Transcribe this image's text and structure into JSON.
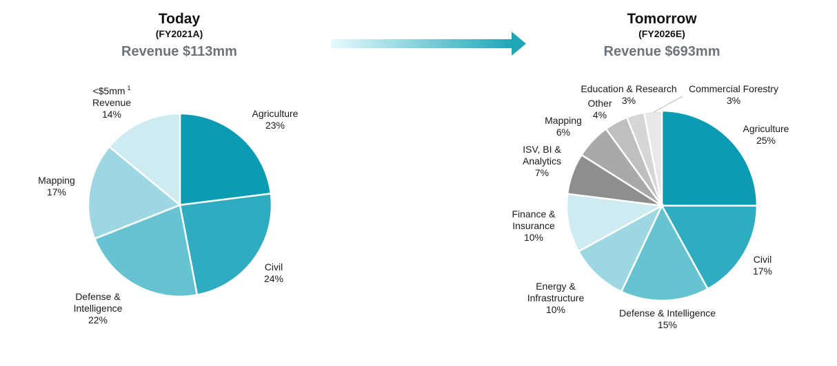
{
  "arrow": {
    "gradient_start": "#e6fafd",
    "gradient_end": "#1ea5b7"
  },
  "chart_data": [
    {
      "type": "pie",
      "title": "Today",
      "subtitle": "(FY2021A)",
      "revenue": "Revenue $113mm",
      "slices": [
        {
          "label": "Agriculture",
          "value_label": "23%",
          "value": 23,
          "color": "#0b9bb2"
        },
        {
          "label": "Civil",
          "value_label": "24%",
          "value": 24,
          "color": "#30acc0"
        },
        {
          "label": "Defense & Intelligence",
          "value_label": "22%",
          "value": 22,
          "color": "#66c3d2"
        },
        {
          "label": "Mapping",
          "value_label": "17%",
          "value": 17,
          "color": "#9dd8e2"
        },
        {
          "label": "<$5mm Revenue",
          "value_label": "14%",
          "value": 14,
          "color": "#cdebf0",
          "footnote": "1"
        }
      ]
    },
    {
      "type": "pie",
      "title": "Tomorrow",
      "subtitle": "(FY2026E)",
      "revenue": "Revenue $693mm",
      "slices": [
        {
          "label": "Agriculture",
          "value_label": "25%",
          "value": 25,
          "color": "#0b9bb2"
        },
        {
          "label": "Civil",
          "value_label": "17%",
          "value": 17,
          "color": "#30acc0"
        },
        {
          "label": "Defense & Intelligence",
          "value_label": "15%",
          "value": 15,
          "color": "#66c3d2"
        },
        {
          "label": "Energy & Infrastructure",
          "value_label": "10%",
          "value": 10,
          "color": "#9dd8e2"
        },
        {
          "label": "Finance & Insurance",
          "value_label": "10%",
          "value": 10,
          "color": "#cdebf0"
        },
        {
          "label": "ISV, BI & Analytics",
          "value_label": "7%",
          "value": 7,
          "color": "#8e8e8e"
        },
        {
          "label": "Mapping",
          "value_label": "6%",
          "value": 6,
          "color": "#a9a9a9"
        },
        {
          "label": "Other",
          "value_label": "4%",
          "value": 4,
          "color": "#bfbfbf"
        },
        {
          "label": "Education & Research",
          "value_label": "3%",
          "value": 3,
          "color": "#d6d6d6"
        },
        {
          "label": "Commercial Forestry",
          "value_label": "3%",
          "value": 3,
          "color": "#e8e8e8"
        }
      ]
    }
  ]
}
